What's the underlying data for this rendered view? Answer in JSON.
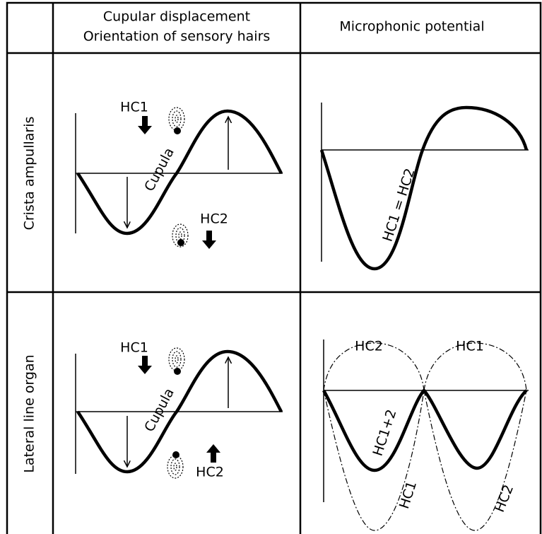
{
  "header": {
    "corner": "",
    "col1": [
      "Cupular displacement",
      "Orientation of sensory hairs"
    ],
    "col2": "Microphonic potential"
  },
  "rows": [
    {
      "label": "Crista ampullaris",
      "cupula_panel": {
        "hc1": "HC1",
        "hc2": "HC2",
        "cupula": "Cupula"
      },
      "potential_panel": {
        "curve_label": "HC1 = HC2"
      }
    },
    {
      "label": "Lateral line organ",
      "cupula_panel": {
        "hc1": "HC1",
        "hc2": "HC2",
        "cupula": "Cupula"
      },
      "potential_panel": {
        "upper_left": "HC2",
        "upper_right": "HC1",
        "sum_label": "HC1+2",
        "lower_left": "HC1",
        "lower_right": "HC2"
      }
    }
  ]
}
